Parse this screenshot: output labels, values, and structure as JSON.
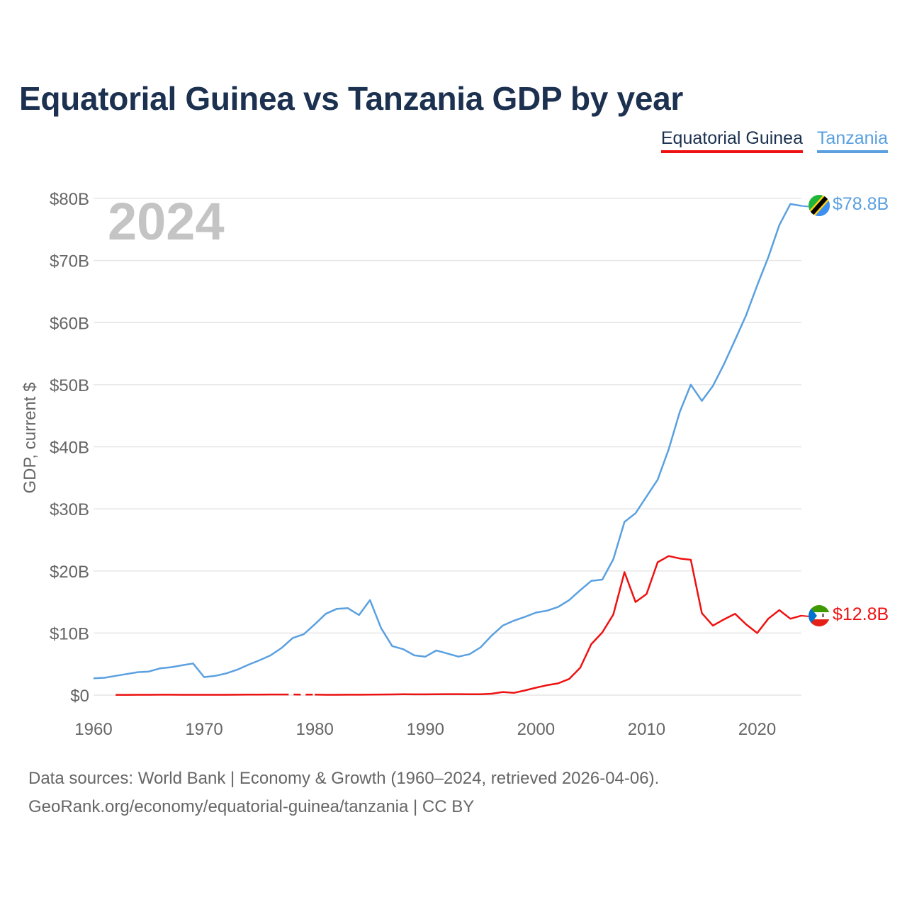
{
  "title": "Equatorial Guinea vs Tanzania GDP by year",
  "legend": [
    "Equatorial Guinea",
    "Tanzania"
  ],
  "year_label": "2024",
  "source": {
    "line1": "Data sources: World Bank | Economy & Growth (1960–2024, retrieved 2026-04-06).",
    "line2": "GeoRank.org/economy/equatorial-guinea/tanzania | CC BY"
  },
  "colors": {
    "equatorial_guinea": "#ee1111",
    "tanzania": "#5aa0e0",
    "title": "#1c3150",
    "grid": "#e6e6e6",
    "axis_text": "#666666"
  },
  "chart_data": {
    "type": "line",
    "title": "Equatorial Guinea vs Tanzania GDP by year",
    "xlabel": "",
    "ylabel": "GDP, current $",
    "xlim": [
      1960,
      2024
    ],
    "ylim": [
      0,
      80
    ],
    "x_ticks": [
      1960,
      1970,
      1980,
      1990,
      2000,
      2010,
      2020
    ],
    "y_ticks": [
      0,
      10,
      20,
      30,
      40,
      50,
      60,
      70,
      80
    ],
    "y_tick_labels": [
      "$0",
      "$10B",
      "$20B",
      "$30B",
      "$40B",
      "$50B",
      "$60B",
      "$70B",
      "$80B"
    ],
    "grid": true,
    "legend_position": "top-right",
    "value_unit": "billion current US$",
    "series": [
      {
        "name": "Equatorial Guinea",
        "color": "#ee1111",
        "end_label": "$12.8B",
        "gap": [
          1977,
          1980
        ],
        "x": [
          1962,
          1963,
          1964,
          1965,
          1966,
          1967,
          1968,
          1969,
          1970,
          1971,
          1972,
          1973,
          1974,
          1975,
          1976,
          1977,
          1980,
          1981,
          1982,
          1983,
          1984,
          1985,
          1986,
          1987,
          1988,
          1989,
          1990,
          1991,
          1992,
          1993,
          1994,
          1995,
          1996,
          1997,
          1998,
          1999,
          2000,
          2001,
          2002,
          2003,
          2004,
          2005,
          2006,
          2007,
          2008,
          2009,
          2010,
          2011,
          2012,
          2013,
          2014,
          2015,
          2016,
          2017,
          2018,
          2019,
          2020,
          2021,
          2022,
          2023,
          2024
        ],
        "values": [
          0.05,
          0.05,
          0.06,
          0.06,
          0.07,
          0.07,
          0.06,
          0.06,
          0.06,
          0.06,
          0.06,
          0.07,
          0.08,
          0.09,
          0.1,
          0.1,
          0.08,
          0.06,
          0.06,
          0.07,
          0.07,
          0.08,
          0.1,
          0.11,
          0.14,
          0.13,
          0.13,
          0.14,
          0.16,
          0.16,
          0.14,
          0.14,
          0.23,
          0.5,
          0.37,
          0.75,
          1.2,
          1.6,
          1.9,
          2.6,
          4.4,
          8.2,
          10.1,
          13.0,
          19.8,
          15.0,
          16.3,
          21.4,
          22.4,
          22.0,
          21.8,
          13.2,
          11.2,
          12.2,
          13.1,
          11.4,
          10.0,
          12.3,
          13.7,
          12.3,
          12.8
        ]
      },
      {
        "name": "Tanzania",
        "color": "#5aa0e0",
        "end_label": "$78.8B",
        "x": [
          1960,
          1961,
          1962,
          1963,
          1964,
          1965,
          1966,
          1967,
          1968,
          1969,
          1970,
          1971,
          1972,
          1973,
          1974,
          1975,
          1976,
          1977,
          1978,
          1979,
          1980,
          1981,
          1982,
          1983,
          1984,
          1985,
          1986,
          1987,
          1988,
          1989,
          1990,
          1991,
          1992,
          1993,
          1994,
          1995,
          1996,
          1997,
          1998,
          1999,
          2000,
          2001,
          2002,
          2003,
          2004,
          2005,
          2006,
          2007,
          2008,
          2009,
          2010,
          2011,
          2012,
          2013,
          2014,
          2015,
          2016,
          2017,
          2018,
          2019,
          2020,
          2021,
          2022,
          2023,
          2024
        ],
        "values": [
          2.7,
          2.8,
          3.1,
          3.4,
          3.7,
          3.8,
          4.3,
          4.5,
          4.8,
          5.1,
          2.9,
          3.1,
          3.5,
          4.1,
          4.9,
          5.6,
          6.4,
          7.6,
          9.2,
          9.8,
          11.4,
          13.1,
          13.9,
          14.0,
          12.9,
          15.3,
          10.8,
          7.9,
          7.4,
          6.4,
          6.2,
          7.2,
          6.7,
          6.2,
          6.6,
          7.7,
          9.6,
          11.2,
          12.0,
          12.6,
          13.3,
          13.6,
          14.2,
          15.3,
          16.9,
          18.4,
          18.6,
          21.9,
          27.9,
          29.3,
          32.0,
          34.7,
          39.6,
          45.6,
          50.0,
          47.4,
          49.8,
          53.3,
          57.2,
          61.2,
          66.0,
          70.5,
          75.7,
          79.1,
          78.8
        ]
      }
    ]
  }
}
